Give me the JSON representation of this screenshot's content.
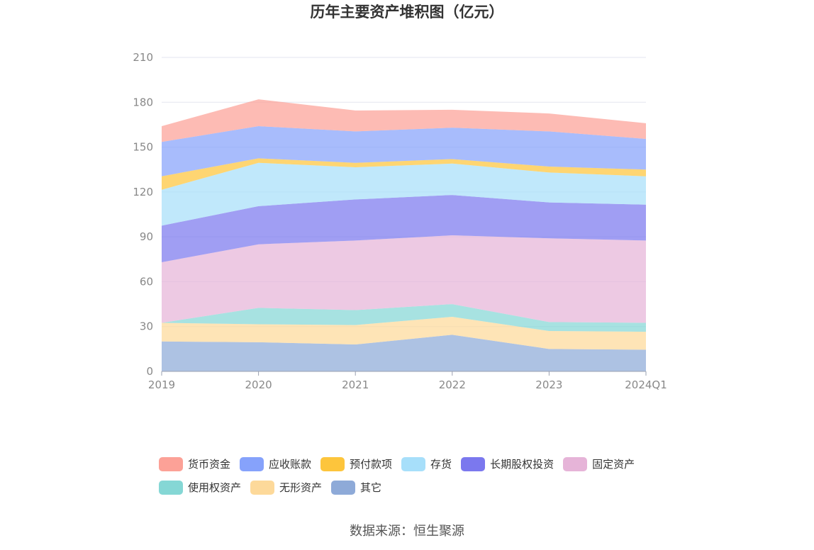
{
  "chart_data": {
    "type": "area",
    "stacked": true,
    "title": "历年主要资产堆积图（亿元）",
    "x": [
      "2019",
      "2020",
      "2021",
      "2022",
      "2023",
      "2024Q1"
    ],
    "ylim": [
      0,
      210
    ],
    "yticks": [
      "0",
      "30",
      "60",
      "90",
      "120",
      "150",
      "180",
      "210"
    ],
    "grid": true,
    "legend_position": "bottom",
    "series": [
      {
        "name": "其它",
        "color": "#8eaad8",
        "values": [
          20,
          19.5,
          18,
          24.5,
          15,
          14.5
        ]
      },
      {
        "name": "无形资产",
        "color": "#fdd99a",
        "values": [
          12.5,
          12,
          13,
          12,
          12,
          12
        ]
      },
      {
        "name": "使用权资产",
        "color": "#85d7d5",
        "values": [
          0,
          11,
          10,
          8.5,
          6,
          6
        ]
      },
      {
        "name": "固定资产",
        "color": "#e6b4d8",
        "values": [
          40.5,
          42.5,
          46.5,
          46,
          56,
          55
        ]
      },
      {
        "name": "长期股权投资",
        "color": "#7b78ee",
        "values": [
          24.5,
          25.5,
          27.5,
          27,
          24,
          24
        ]
      },
      {
        "name": "存货",
        "color": "#a7dffa",
        "values": [
          24,
          29,
          21.5,
          21,
          20,
          19
        ]
      },
      {
        "name": "预付款项",
        "color": "#fdc53c",
        "values": [
          9,
          3,
          3,
          3,
          4,
          4.5
        ]
      },
      {
        "name": "应收账款",
        "color": "#86a2fb",
        "values": [
          23,
          21.5,
          21,
          21,
          23.5,
          20.5
        ]
      },
      {
        "name": "货币资金",
        "color": "#fca197",
        "values": [
          10.5,
          18,
          14,
          12,
          12,
          10.5
        ]
      }
    ]
  },
  "legend": [
    [
      "货币资金",
      "应收账款",
      "预付款项",
      "存货",
      "长期股权投资",
      "固定资产"
    ],
    [
      "使用权资产",
      "无形资产",
      "其它"
    ]
  ],
  "source": "数据来源：恒生聚源"
}
